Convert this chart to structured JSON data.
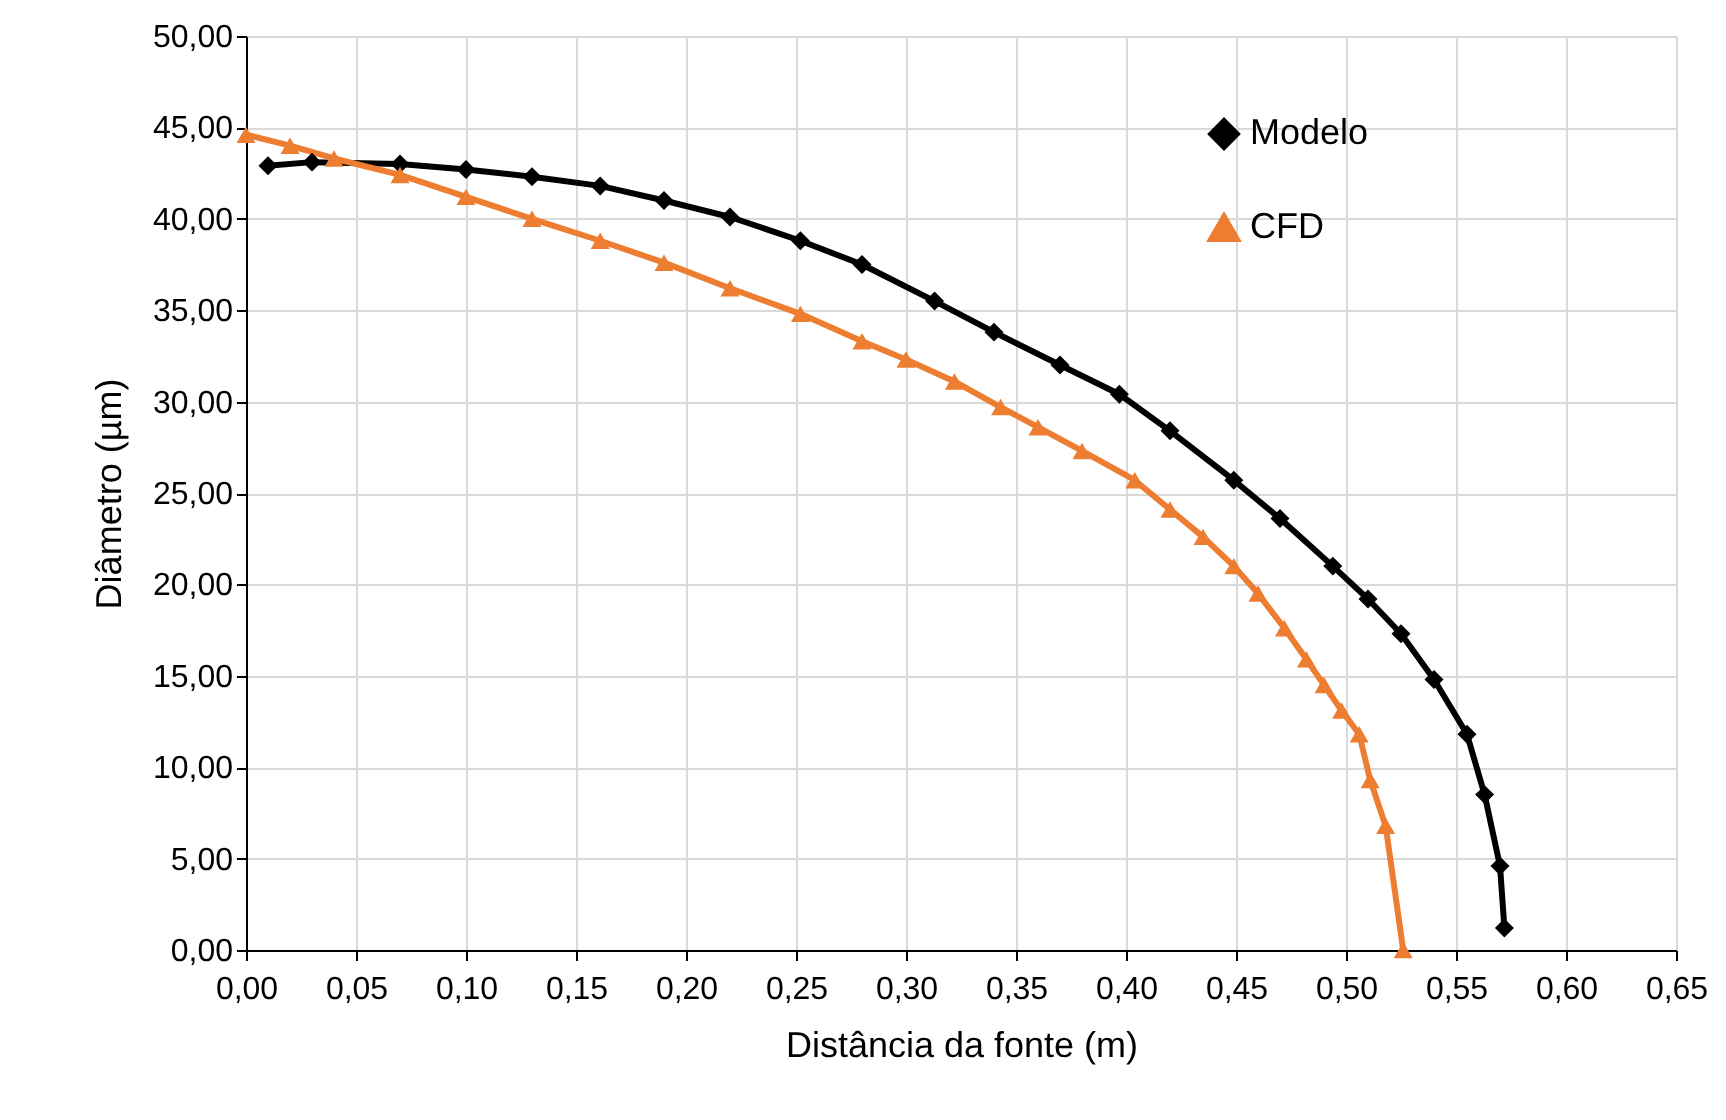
{
  "chart_data": {
    "type": "line",
    "xlabel": "Distância da fonte (m)",
    "ylabel": "Diâmetro (µm)",
    "xlim": [
      0,
      0.65
    ],
    "xticks": [
      {
        "value": 0,
        "label": "0,00"
      },
      {
        "value": 0.05,
        "label": "0,05"
      },
      {
        "value": 0.1,
        "label": "0,10"
      },
      {
        "value": 0.15,
        "label": "0,15"
      },
      {
        "value": 0.2,
        "label": "0,20"
      },
      {
        "value": 0.25,
        "label": "0,25"
      },
      {
        "value": 0.3,
        "label": "0,30"
      },
      {
        "value": 0.35,
        "label": "0,35"
      },
      {
        "value": 0.4,
        "label": "0,40"
      },
      {
        "value": 0.45,
        "label": "0,45"
      },
      {
        "value": 0.5,
        "label": "0,50"
      },
      {
        "value": 0.55,
        "label": "0,55"
      },
      {
        "value": 0.6,
        "label": "0,60"
      },
      {
        "value": 0.65,
        "label": "0,65"
      }
    ],
    "ylim": [
      0,
      50
    ],
    "yticks": [
      {
        "value": 0,
        "label": "0,00"
      },
      {
        "value": 5,
        "label": "5,00"
      },
      {
        "value": 10,
        "label": "10,00"
      },
      {
        "value": 15,
        "label": "15,00"
      },
      {
        "value": 20,
        "label": "20,00"
      },
      {
        "value": 25,
        "label": "25,00"
      },
      {
        "value": 30,
        "label": "30,00"
      },
      {
        "value": 35,
        "label": "35,00"
      },
      {
        "value": 40,
        "label": "40,00"
      },
      {
        "value": 45,
        "label": "45,00"
      },
      {
        "value": 50,
        "label": "50,00"
      }
    ],
    "grid": true,
    "legend": "top right",
    "series": [
      {
        "name": "Modelo",
        "color": "#000000",
        "marker": "diamond",
        "x": [
          0.01,
          0.03,
          0.07,
          0.1,
          0.13,
          0.161,
          0.19,
          0.22,
          0.252,
          0.28,
          0.313,
          0.34,
          0.37,
          0.397,
          0.42,
          0.449,
          0.47,
          0.494,
          0.51,
          0.525,
          0.54,
          0.555,
          0.563,
          0.57,
          0.572
        ],
        "values": [
          42.9,
          43.1,
          43.0,
          42.7,
          42.3,
          41.8,
          41.0,
          40.1,
          38.8,
          37.5,
          35.5,
          33.8,
          32.0,
          30.4,
          28.4,
          25.7,
          23.6,
          21.0,
          19.2,
          17.3,
          14.8,
          11.8,
          8.5,
          4.6,
          1.2
        ]
      },
      {
        "name": "CFD",
        "color": "#ed7d31",
        "marker": "triangle",
        "x": [
          0,
          0.02,
          0.04,
          0.07,
          0.1,
          0.13,
          0.161,
          0.19,
          0.22,
          0.252,
          0.28,
          0.3,
          0.322,
          0.343,
          0.36,
          0.38,
          0.404,
          0.42,
          0.435,
          0.449,
          0.46,
          0.472,
          0.482,
          0.49,
          0.498,
          0.506,
          0.511,
          0.518,
          0.526
        ],
        "values": [
          44.6,
          44.0,
          43.3,
          42.4,
          41.2,
          40.0,
          38.8,
          37.6,
          36.2,
          34.8,
          33.3,
          32.3,
          31.1,
          29.7,
          28.6,
          27.3,
          25.7,
          24.1,
          22.6,
          21.0,
          19.5,
          17.6,
          15.9,
          14.5,
          13.1,
          11.8,
          9.3,
          6.8,
          0
        ]
      }
    ]
  }
}
